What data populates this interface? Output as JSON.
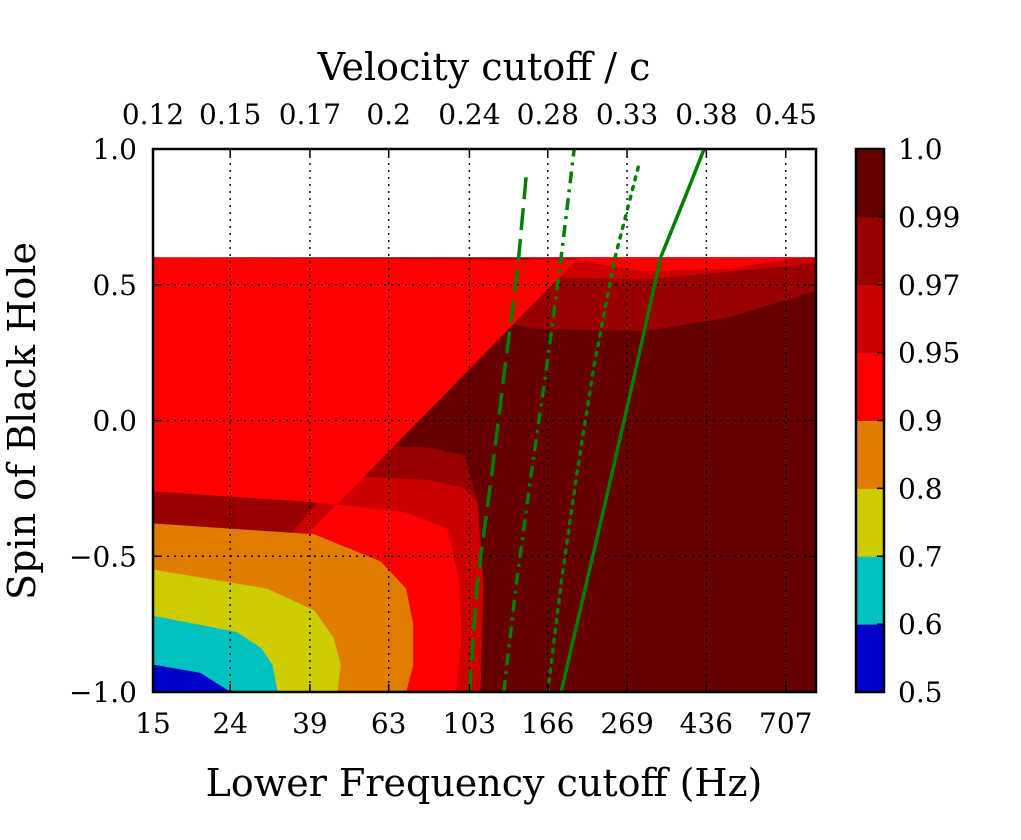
{
  "chart_data": {
    "type": "contourf",
    "title_top_axis": "Velocity cutoff  / c",
    "xlabel": "Lower Frequency cutoff (Hz)",
    "ylabel": "Spin of Black Hole",
    "x_scale": "log",
    "xlim": [
      15,
      850
    ],
    "ylim": [
      -1.0,
      1.0
    ],
    "bottom_tick_labels": [
      "15",
      "24",
      "39",
      "63",
      "103",
      "166",
      "269",
      "436",
      "707"
    ],
    "bottom_tick_values": [
      15,
      24,
      39,
      63,
      103,
      166,
      269,
      436,
      707
    ],
    "top_tick_labels": [
      "0.12",
      "0.15",
      "0.17",
      "0.2",
      "0.24",
      "0.28",
      "0.33",
      "0.38",
      "0.45"
    ],
    "y_tick_labels": [
      "1.0",
      "0.5",
      "0.0",
      "−0.5",
      "−1.0"
    ],
    "y_tick_values": [
      1.0,
      0.5,
      0.0,
      -0.5,
      -1.0
    ],
    "grid": true,
    "data_spin_max": 0.6,
    "colorbar": {
      "levels": [
        0.5,
        0.6,
        0.7,
        0.8,
        0.9,
        0.95,
        0.97,
        0.99,
        1.0
      ],
      "labels": [
        "0.5",
        "0.6",
        "0.7",
        "0.8",
        "0.9",
        "0.95",
        "0.97",
        "0.99",
        "1.0"
      ],
      "colors": [
        "#0000cc",
        "#00c0c0",
        "#cccc00",
        "#e07c00",
        "#ff0000",
        "#cc0000",
        "#990000",
        "#660000"
      ]
    },
    "contour_bands": [
      {
        "name": "0.99-1.0",
        "color": "#660000",
        "x": [
          15,
          850,
          850,
          15
        ],
        "y": [
          -1.0,
          -1.0,
          0.6,
          0.6
        ]
      },
      {
        "name": "0.97-0.99",
        "color": "#990000",
        "x": [
          15,
          850,
          850,
          500,
          300,
          150,
          100,
          15,
          15,
          40,
          80,
          100,
          108,
          112,
          110,
          97,
          15
        ],
        "y": [
          0.6,
          0.6,
          0.48,
          0.38,
          0.33,
          0.34,
          0.4,
          0.46,
          -0.08,
          -0.09,
          -0.1,
          -0.13,
          -0.3,
          -0.6,
          -1.0,
          -1.0,
          -1.0
        ]
      },
      {
        "name": "0.95-0.97",
        "color": "#cc0000",
        "x": [
          150,
          700,
          850,
          850,
          300,
          150,
          15,
          15,
          40,
          80,
          100,
          108,
          112,
          110,
          97,
          15
        ],
        "y": [
          0.6,
          0.6,
          0.6,
          0.58,
          0.52,
          0.53,
          0.6,
          -0.19,
          -0.2,
          -0.22,
          -0.25,
          -0.3,
          -0.6,
          -1.0,
          -1.0,
          -1.0
        ]
      },
      {
        "name": "0.9-0.95",
        "color": "#ff0000",
        "x": [
          200,
          600,
          750,
          500,
          300,
          200,
          15,
          15,
          40,
          70,
          90,
          97,
          98,
          95,
          88,
          15
        ],
        "y": [
          0.6,
          0.6,
          0.6,
          0.56,
          0.55,
          0.59,
          0.6,
          -0.26,
          -0.3,
          -0.34,
          -0.4,
          -0.6,
          -0.8,
          -1.0,
          -1.0,
          -1.0
        ]
      },
      {
        "name": "0.8-0.9",
        "color": "#e07c00",
        "x": [
          15,
          40,
          60,
          70,
          73,
          73,
          70,
          15
        ],
        "y": [
          -0.38,
          -0.42,
          -0.52,
          -0.62,
          -0.75,
          -0.9,
          -1.0,
          -1.0
        ]
      },
      {
        "name": "0.7-0.8",
        "color": "#cccc00",
        "x": [
          15,
          30,
          40,
          45,
          47,
          46,
          15
        ],
        "y": [
          -0.55,
          -0.62,
          -0.7,
          -0.8,
          -0.9,
          -1.0,
          -1.0
        ]
      },
      {
        "name": "0.6-0.7",
        "color": "#00c0c0",
        "x": [
          15,
          25,
          29,
          31,
          32,
          15
        ],
        "y": [
          -0.72,
          -0.78,
          -0.84,
          -0.9,
          -1.0,
          -1.0
        ]
      },
      {
        "name": "0.5-0.6",
        "color": "#0000cc",
        "x": [
          15,
          20,
          24,
          15
        ],
        "y": [
          -0.9,
          -0.93,
          -1.0,
          -1.0
        ]
      }
    ],
    "series": [
      {
        "name": "dashed",
        "style": "dashed",
        "color": "#008000",
        "x": [
          103,
          108,
          118,
          128,
          138,
          146
        ],
        "y": [
          -1.0,
          -0.6,
          -0.2,
          0.2,
          0.55,
          0.92
        ]
      },
      {
        "name": "dash-dot",
        "style": "dashdot",
        "color": "#008000",
        "x": [
          127,
          137,
          150,
          165,
          180,
          195
        ],
        "y": [
          -1.0,
          -0.6,
          -0.2,
          0.2,
          0.6,
          1.0
        ]
      },
      {
        "name": "dotted",
        "style": "dotted",
        "color": "#008000",
        "x": [
          166,
          180,
          198,
          220,
          250,
          290
        ],
        "y": [
          -1.0,
          -0.6,
          -0.2,
          0.2,
          0.6,
          0.95
        ]
      },
      {
        "name": "solid",
        "style": "solid",
        "color": "#008000",
        "x": [
          180,
          210,
          245,
          285,
          330,
          390,
          430
        ],
        "y": [
          -1.0,
          -0.6,
          -0.2,
          0.2,
          0.6,
          0.85,
          1.0
        ]
      }
    ]
  }
}
